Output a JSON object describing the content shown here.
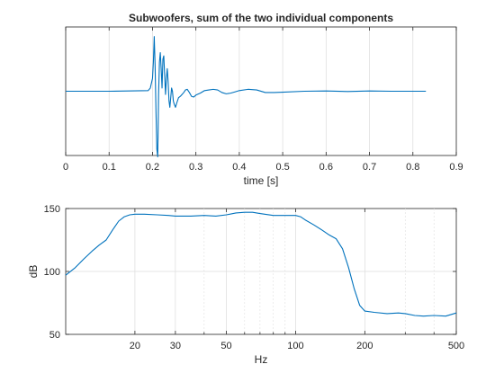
{
  "chart_data": [
    {
      "type": "line",
      "title": "Subwoofers, sum of the two individual components",
      "xlabel": "time [s]",
      "ylabel": "",
      "xlim": [
        0,
        0.9
      ],
      "ylim": [
        -1,
        1
      ],
      "x_ticks": [
        0,
        0.1,
        0.2,
        0.3,
        0.4,
        0.5,
        0.6,
        0.7,
        0.8,
        0.9
      ],
      "y_ticks": [],
      "x_scale": "linear",
      "grid": true,
      "series": [
        {
          "color": "#0072bd",
          "x": [
            0.0,
            0.1,
            0.19,
            0.195,
            0.2,
            0.202,
            0.204,
            0.206,
            0.208,
            0.21,
            0.212,
            0.213,
            0.214,
            0.216,
            0.218,
            0.22,
            0.222,
            0.224,
            0.226,
            0.228,
            0.23,
            0.232,
            0.234,
            0.236,
            0.238,
            0.24,
            0.242,
            0.244,
            0.246,
            0.248,
            0.25,
            0.253,
            0.256,
            0.26,
            0.264,
            0.268,
            0.272,
            0.276,
            0.28,
            0.285,
            0.29,
            0.295,
            0.3,
            0.31,
            0.32,
            0.33,
            0.34,
            0.35,
            0.36,
            0.37,
            0.38,
            0.39,
            0.4,
            0.42,
            0.44,
            0.46,
            0.48,
            0.5,
            0.55,
            0.6,
            0.65,
            0.7,
            0.75,
            0.8,
            0.83
          ],
          "y": [
            0.0,
            0.0,
            0.01,
            0.05,
            0.2,
            0.45,
            0.85,
            0.4,
            -0.3,
            -0.9,
            -1.02,
            -0.6,
            -0.05,
            0.45,
            0.6,
            0.35,
            0.05,
            0.5,
            0.55,
            0.25,
            -0.05,
            0.2,
            0.35,
            0.15,
            -0.15,
            -0.25,
            -0.1,
            0.05,
            0.0,
            -0.15,
            -0.2,
            -0.25,
            -0.18,
            -0.1,
            -0.08,
            -0.05,
            -0.02,
            0.02,
            0.03,
            -0.02,
            -0.08,
            -0.09,
            -0.06,
            -0.03,
            0.01,
            0.02,
            0.03,
            0.02,
            -0.02,
            -0.04,
            -0.03,
            -0.01,
            0.01,
            0.03,
            0.02,
            -0.02,
            -0.02,
            -0.015,
            0.0,
            0.005,
            -0.005,
            0.005,
            0.0,
            0.0,
            0.0
          ]
        }
      ]
    },
    {
      "type": "line",
      "title": "",
      "xlabel": "Hz",
      "ylabel": "dB",
      "xlim": [
        10,
        500
      ],
      "ylim": [
        50,
        150
      ],
      "x_ticks": [
        20,
        30,
        50,
        100,
        200,
        500
      ],
      "x_minor_ticks": [
        40,
        60,
        70,
        80,
        90,
        300,
        400
      ],
      "y_ticks": [
        50,
        100,
        150
      ],
      "x_scale": "log",
      "grid": true,
      "series": [
        {
          "color": "#0072bd",
          "x": [
            10,
            11,
            12,
            13,
            14,
            15,
            16,
            17,
            18,
            19,
            20,
            22,
            25,
            28,
            30,
            35,
            40,
            45,
            50,
            55,
            60,
            65,
            70,
            80,
            90,
            100,
            105,
            110,
            120,
            130,
            140,
            150,
            160,
            170,
            180,
            190,
            200,
            220,
            250,
            280,
            300,
            330,
            360,
            400,
            450,
            500
          ],
          "y": [
            97,
            103,
            110,
            116,
            121,
            125,
            133,
            140,
            143.5,
            145,
            145.5,
            145.5,
            145,
            144.5,
            144,
            144,
            144.5,
            144,
            145,
            146.5,
            147,
            147,
            146,
            144.5,
            144.5,
            144.5,
            143.5,
            141,
            137,
            133,
            129,
            126,
            118,
            103,
            86,
            73,
            68.5,
            67.5,
            66.5,
            67,
            66.5,
            65,
            64.5,
            65,
            64.5,
            67
          ]
        }
      ]
    }
  ]
}
